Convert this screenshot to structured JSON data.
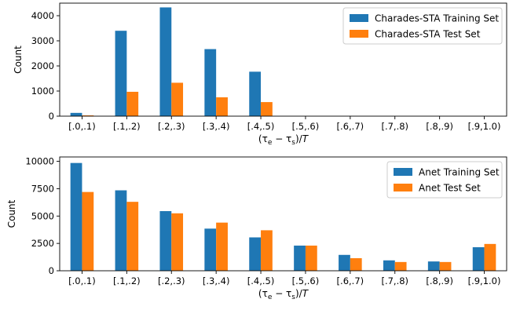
{
  "chart_data": [
    {
      "type": "bar",
      "categories": [
        "[.0,.1)",
        "[.1,.2)",
        "[.2,.3)",
        "[.3,.4)",
        "[.4,.5)",
        "[.5,.6)",
        "[.6,.7)",
        "[.7,.8)",
        "[.8,.9)",
        "[.9,1.0)"
      ],
      "series": [
        {
          "name": "Charades-STA Training Set",
          "color": "#1f77b4",
          "values": [
            130,
            3400,
            4330,
            2670,
            1770,
            0,
            0,
            0,
            0,
            0
          ]
        },
        {
          "name": "Charades-STA Test Set",
          "color": "#ff7f0e",
          "values": [
            30,
            970,
            1330,
            750,
            560,
            0,
            0,
            0,
            0,
            0
          ]
        }
      ],
      "xlabel": "(τe − τs)/T",
      "ylabel": "Count",
      "ylim": [
        0,
        4500
      ],
      "yticks": [
        0,
        1000,
        2000,
        3000,
        4000
      ],
      "legend": "top-right",
      "grid": false
    },
    {
      "type": "bar",
      "categories": [
        "[.0,.1)",
        "[.1,.2)",
        "[.2,.3)",
        "[.3,.4)",
        "[.4,.5)",
        "[.5,.6)",
        "[.6,.7)",
        "[.7,.8)",
        "[.8,.9)",
        "[.9,1.0)"
      ],
      "series": [
        {
          "name": "Anet Training Set",
          "color": "#1f77b4",
          "values": [
            9850,
            7350,
            5450,
            3850,
            3050,
            2300,
            1450,
            950,
            850,
            2150
          ]
        },
        {
          "name": "Anet Test Set",
          "color": "#ff7f0e",
          "values": [
            7200,
            6300,
            5250,
            4400,
            3700,
            2300,
            1150,
            800,
            800,
            2450
          ]
        }
      ],
      "xlabel": "(τe − τs)/T",
      "ylabel": "Count",
      "ylim": [
        0,
        10400
      ],
      "yticks": [
        0,
        2500,
        5000,
        7500,
        10000
      ],
      "legend": "top-right",
      "grid": false
    }
  ]
}
